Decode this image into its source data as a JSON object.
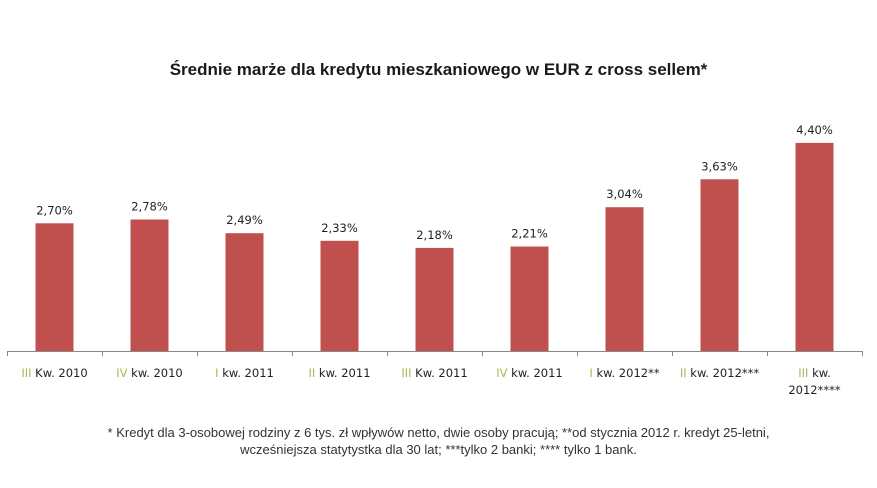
{
  "chart_data": {
    "type": "bar",
    "title": "Średnie marże dla kredytu mieszkaniowego w EUR z cross sellem*",
    "xlabel": "",
    "ylabel": "",
    "ylim": [
      0,
      4.5
    ],
    "grid": false,
    "legend": "none",
    "categories": [
      "III Kw. 2010",
      "IV kw. 2010",
      "I kw. 2011",
      "II kw. 2011",
      "III Kw. 2011",
      "IV kw. 2011",
      "I kw. 2012**",
      "II kw. 2012***",
      "III kw. 2012****"
    ],
    "category_lines": [
      [
        "III Kw. 2010"
      ],
      [
        "IV kw. 2010"
      ],
      [
        "I kw. 2011"
      ],
      [
        "II kw. 2011"
      ],
      [
        "III Kw. 2011"
      ],
      [
        "IV kw. 2011"
      ],
      [
        "I kw. 2012**"
      ],
      [
        "II kw. 2012***"
      ],
      [
        "III kw.",
        "2012****"
      ]
    ],
    "values": [
      2.7,
      2.78,
      2.49,
      2.33,
      2.18,
      2.21,
      3.04,
      3.63,
      4.4
    ],
    "data_labels": [
      "2,70%",
      "2,78%",
      "2,49%",
      "2,33%",
      "2,18%",
      "2,21%",
      "3,04%",
      "3,63%",
      "4,40%"
    ],
    "bar_color": "#c0504d",
    "axis_color": "#888888",
    "roman_numeral_color": "#9bbb59",
    "footnote_lines": [
      "* Kredyt dla 3-osobowej rodziny z 6 tys. zł wpływów netto, dwie osoby pracują; **od stycznia 2012 r. kredyt 25-letni,",
      "wcześniejsza statytystka dla 30 lat; ***tylko 2 banki; **** tylko 1 bank."
    ]
  }
}
